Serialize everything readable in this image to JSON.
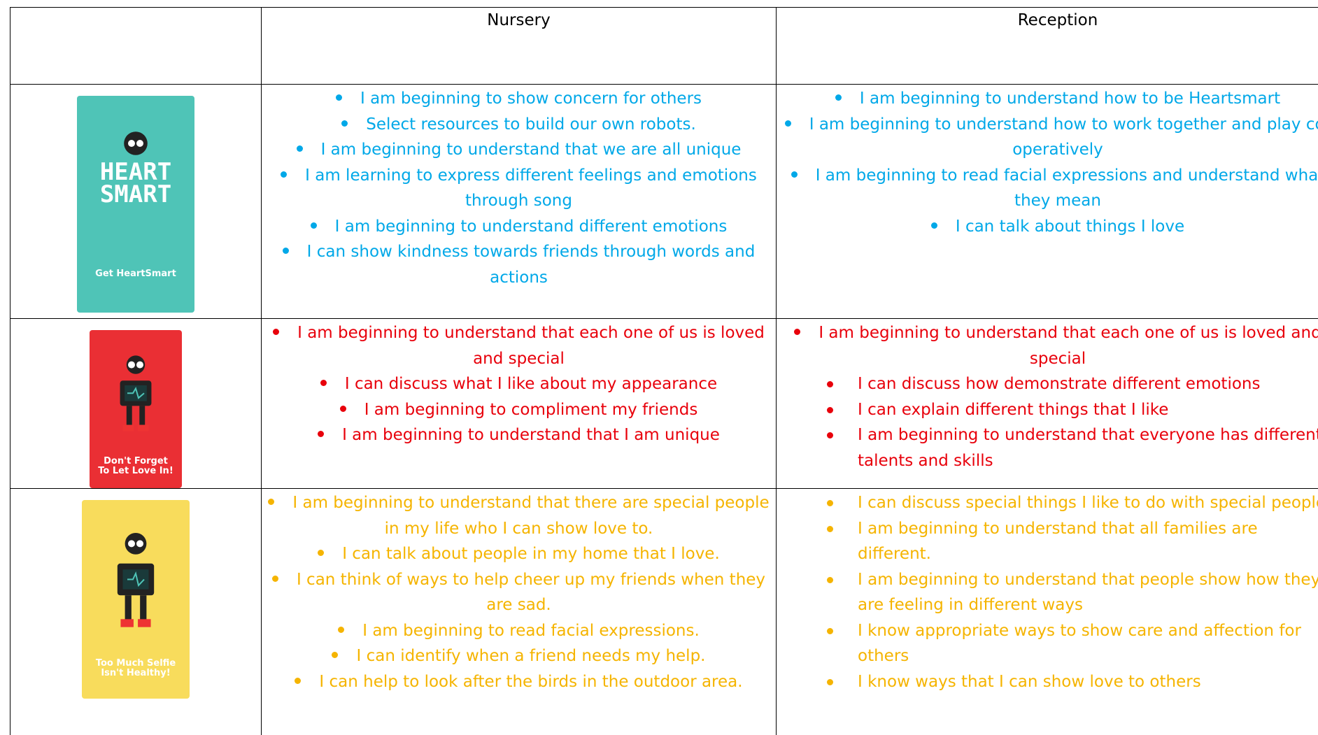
{
  "table": {
    "header": [
      "Nursery",
      "Reception"
    ],
    "rows": [
      {
        "color": "#00a8e8",
        "card": {
          "color": "#4fc4b7",
          "logo": [
            "HEART",
            "SMART"
          ],
          "caption": "Get HeartSmart"
        },
        "cells": [
          [
            "I am beginning to show concern for others",
            "Select resources to build our own robots.",
            "I am beginning to understand that we are all unique",
            "I am learning to express different feelings and emotions through song",
            "I am beginning to understand different emotions",
            "I can show kindness towards friends through words and actions"
          ],
          [
            "I am beginning to understand how to be Heartsmart",
            "I am beginning to understand how to work together and play co-operatively",
            "I am beginning to read  facial expressions and understand what they mean",
            "I can talk about things I love"
          ]
        ]
      },
      {
        "color": "#e8000b",
        "card": {
          "color": "#ea2f34",
          "caption": "Don't Forget To Let Love In!"
        },
        "cells": [
          [
            "I am beginning to understand that each one of us is loved and special",
            "I can discuss what I like about my appearance",
            "I am beginning to compliment my friends",
            "I am beginning to understand that I am unique"
          ],
          [
            "I am beginning to understand that each one of us is loved and special",
            "I can discuss how demonstrate different emotions",
            "I can explain different things that I like",
            "I am beginning to understand that everyone has different talents and skills"
          ]
        ]
      },
      {
        "color": "#f5b400",
        "card": {
          "color": "#f8dc5c",
          "caption": "Too Much Selfie Isn't Healthy!"
        },
        "cells": [
          [
            "I am beginning to understand that there are special people in my life who I can show love to.",
            "I can talk about people in my home that I love.",
            "I can think of ways to help cheer up my friends when they are sad.",
            "I am beginning to read facial expressions.",
            "I can identify when a friend needs my help.",
            "I can help to look after the birds in the outdoor area."
          ],
          [
            "I can discuss special things I like to do with special people",
            "I am beginning to understand that all families are different.",
            "I am beginning to understand that people show how they are feeling in different ways",
            "I know appropriate ways to show care and affection for others",
            "I know ways that I can show love to others"
          ]
        ]
      }
    ]
  }
}
